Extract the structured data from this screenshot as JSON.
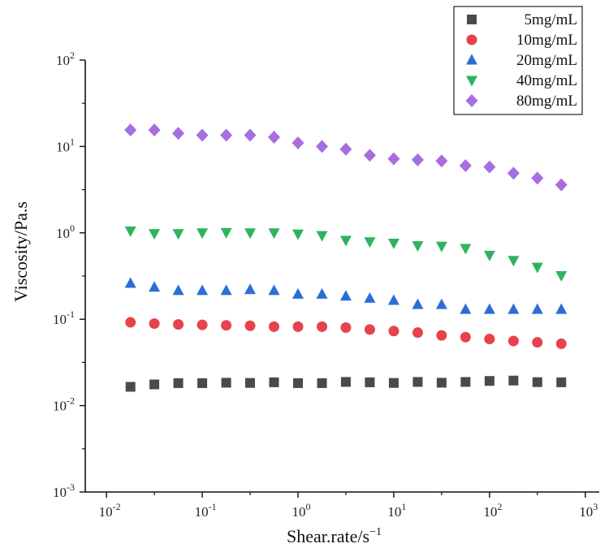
{
  "chart_data": {
    "type": "scatter",
    "title": "",
    "xlabel": "Shear.rate/s",
    "xlabel_exp": "−1",
    "ylabel": "Viscosity/Pa.s",
    "xscale": "log",
    "yscale": "log",
    "xlim": [
      0.006,
      1400
    ],
    "ylim": [
      0.001,
      100
    ],
    "xticks": [
      {
        "value": 0.01,
        "base": "10",
        "exp": "-2"
      },
      {
        "value": 0.1,
        "base": "10",
        "exp": "-1"
      },
      {
        "value": 1,
        "base": "10",
        "exp": "0"
      },
      {
        "value": 10,
        "base": "10",
        "exp": "1"
      },
      {
        "value": 100,
        "base": "10",
        "exp": "2"
      },
      {
        "value": 1000,
        "base": "10",
        "exp": "3"
      }
    ],
    "yticks": [
      {
        "value": 0.001,
        "base": "10",
        "exp": "-3"
      },
      {
        "value": 0.01,
        "base": "10",
        "exp": "-2"
      },
      {
        "value": 0.1,
        "base": "10",
        "exp": "-1"
      },
      {
        "value": 1,
        "base": "10",
        "exp": "0"
      },
      {
        "value": 10,
        "base": "10",
        "exp": "1"
      },
      {
        "value": 100,
        "base": "10",
        "exp": "2"
      }
    ],
    "grid": false,
    "legend_position": "top-right",
    "x": [
      0.0178,
      0.0316,
      0.0562,
      0.1,
      0.178,
      0.316,
      0.562,
      1,
      1.78,
      3.16,
      5.62,
      10,
      17.8,
      31.6,
      56.2,
      100,
      178,
      316,
      562
    ],
    "series": [
      {
        "name": "5mg/mL",
        "marker": "square",
        "color": "#4a4a4a",
        "values": [
          0.0165,
          0.0176,
          0.0182,
          0.0182,
          0.0184,
          0.0183,
          0.0186,
          0.0182,
          0.0182,
          0.0188,
          0.0186,
          0.0183,
          0.0188,
          0.0184,
          0.0188,
          0.0193,
          0.0195,
          0.0187,
          0.0186
        ]
      },
      {
        "name": "10mg/mL",
        "marker": "circle",
        "color": "#e8424a",
        "values": [
          0.092,
          0.089,
          0.087,
          0.086,
          0.085,
          0.084,
          0.082,
          0.082,
          0.082,
          0.08,
          0.076,
          0.073,
          0.07,
          0.065,
          0.062,
          0.059,
          0.056,
          0.054,
          0.052
        ]
      },
      {
        "name": "20mg/mL",
        "marker": "triangle-up",
        "color": "#2a6fd6",
        "values": [
          0.26,
          0.235,
          0.215,
          0.215,
          0.215,
          0.22,
          0.215,
          0.195,
          0.195,
          0.185,
          0.175,
          0.165,
          0.148,
          0.148,
          0.13,
          0.13,
          0.13,
          0.13,
          0.13
        ]
      },
      {
        "name": "40mg/mL",
        "marker": "triangle-down",
        "color": "#2fb35f",
        "values": [
          1.05,
          0.98,
          0.98,
          1.0,
          1.01,
          1.0,
          1.0,
          0.97,
          0.93,
          0.82,
          0.79,
          0.76,
          0.71,
          0.7,
          0.66,
          0.55,
          0.48,
          0.4,
          0.32
        ]
      },
      {
        "name": "80mg/mL",
        "marker": "diamond",
        "color": "#a76ee0",
        "values": [
          15.5,
          15.5,
          14.2,
          13.5,
          13.5,
          13.5,
          12.8,
          11.0,
          10.0,
          9.3,
          7.9,
          7.2,
          7.0,
          6.8,
          6.0,
          5.8,
          4.9,
          4.3,
          3.6
        ]
      }
    ]
  }
}
